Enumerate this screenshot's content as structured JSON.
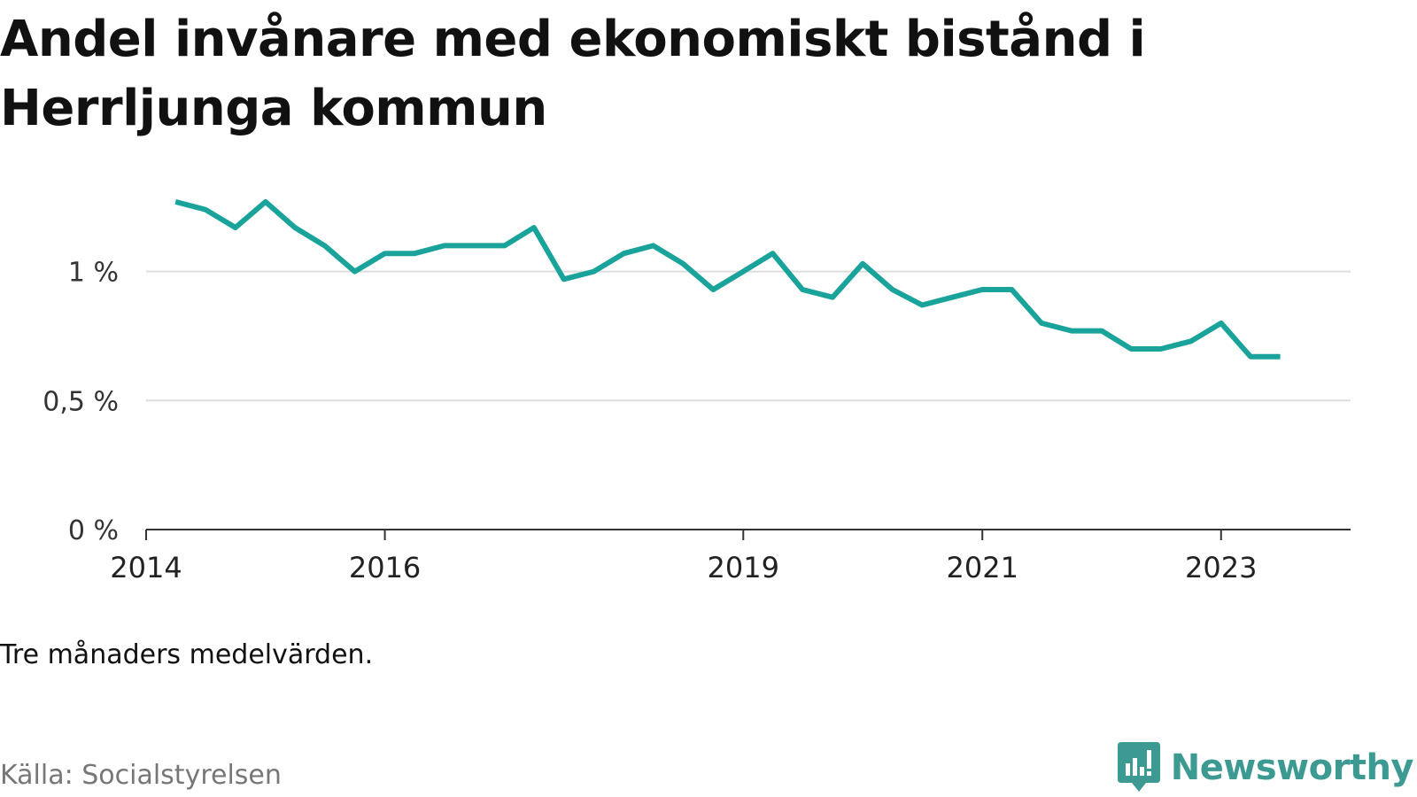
{
  "title": "Andel invånare med ekonomiskt bistånd i Herrljunga kommun",
  "note": "Tre månaders medelvärden.",
  "source": "Källa: Socialstyrelsen",
  "brand": {
    "name": "Newsworthy",
    "icon": "newsworthy-logo-icon"
  },
  "colors": {
    "line": "#1aa39a",
    "grid": "#dddddd",
    "axis": "#333333",
    "brand": "#3c9a92"
  },
  "chart_data": {
    "type": "line",
    "title": "Andel invånare med ekonomiskt bistånd i Herrljunga kommun",
    "xlabel": "",
    "ylabel": "",
    "ylim": [
      0,
      1.4
    ],
    "xlim": [
      "2014-01-01",
      "2024-02-01"
    ],
    "grid": true,
    "legend": "none",
    "yticks": [
      {
        "value": 0,
        "label": "0 %"
      },
      {
        "value": 0.5,
        "label": "0,5 %"
      },
      {
        "value": 1,
        "label": "1 %"
      }
    ],
    "xticks": [
      {
        "date": "2014-01-01",
        "label": "2014"
      },
      {
        "date": "2016-01-01",
        "label": "2016"
      },
      {
        "date": "2019-01-01",
        "label": "2019"
      },
      {
        "date": "2021-01-01",
        "label": "2021"
      },
      {
        "date": "2023-01-01",
        "label": "2023"
      }
    ],
    "series": [
      {
        "x": [
          "2014-04-01",
          "2014-07-01",
          "2014-10-01",
          "2015-01-01",
          "2015-04-01",
          "2015-07-01",
          "2015-10-01",
          "2016-01-01",
          "2016-04-01",
          "2016-07-01",
          "2016-10-01",
          "2017-01-01",
          "2017-04-01",
          "2017-07-01",
          "2017-10-01",
          "2018-01-01",
          "2018-04-01",
          "2018-07-01",
          "2018-10-01",
          "2019-01-01",
          "2019-04-01",
          "2019-07-01",
          "2019-10-01",
          "2020-01-01",
          "2020-04-01",
          "2020-07-01",
          "2020-10-01",
          "2021-01-01",
          "2021-04-01",
          "2021-07-01",
          "2021-10-01",
          "2022-01-01",
          "2022-04-01",
          "2022-07-01",
          "2022-10-01",
          "2023-01-01",
          "2023-04-01",
          "2023-07-01"
        ],
        "y": [
          1.27,
          1.24,
          1.17,
          1.27,
          1.17,
          1.1,
          1.0,
          1.07,
          1.07,
          1.1,
          1.1,
          1.1,
          1.17,
          0.97,
          1.0,
          1.07,
          1.1,
          1.03,
          0.93,
          1.0,
          1.07,
          0.93,
          0.9,
          1.03,
          0.93,
          0.87,
          0.9,
          0.93,
          0.93,
          0.8,
          0.77,
          0.77,
          0.7,
          0.7,
          0.73,
          0.8,
          0.67,
          0.67
        ]
      }
    ]
  }
}
